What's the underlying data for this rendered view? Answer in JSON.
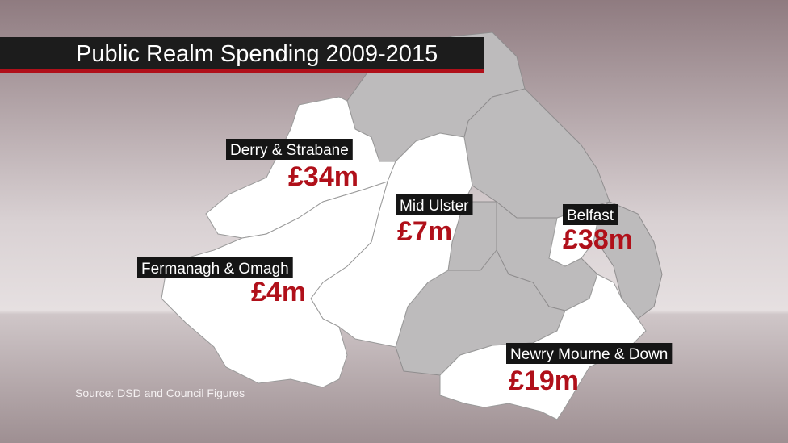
{
  "title": "Public Realm Spending 2009-2015",
  "source": "Source: DSD and Council Figures",
  "regions": [
    {
      "name": "Derry & Strabane",
      "amount": "£34m"
    },
    {
      "name": "Mid Ulster",
      "amount": "£7m"
    },
    {
      "name": "Belfast",
      "amount": "£38m"
    },
    {
      "name": "Fermanagh & Omagh",
      "amount": "£4m"
    },
    {
      "name": "Newry Mourne & Down",
      "amount": "£19m"
    }
  ]
}
